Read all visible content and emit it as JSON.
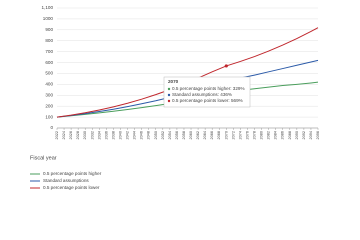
{
  "chart_data": {
    "type": "line",
    "x_label": "Fiscal year",
    "x": [
      2022,
      2026,
      2030,
      2034,
      2038,
      2042,
      2046,
      2050,
      2054,
      2058,
      2062,
      2066,
      2070,
      2074,
      2078,
      2082,
      2086,
      2090,
      2094,
      2096
    ],
    "series": [
      {
        "name": "0.5 percentage points higher",
        "color": "#4a9e5c",
        "values": [
          100,
          112,
          125,
          139,
          154,
          170,
          187,
          205,
          225,
          248,
          273,
          300,
          329,
          345,
          360,
          375,
          389,
          400,
          413,
          420
        ]
      },
      {
        "name": "Standard assumptions",
        "color": "#2b5aa8",
        "values": [
          100,
          115,
          132,
          151,
          172,
          196,
          222,
          250,
          281,
          315,
          352,
          392,
          436,
          458,
          485,
          515,
          545,
          575,
          605,
          620
        ]
      },
      {
        "name": "0.5 percentage points lower",
        "color": "#c0272d",
        "values": [
          100,
          118,
          140,
          165,
          194,
          227,
          264,
          306,
          352,
          403,
          458,
          515,
          569,
          610,
          655,
          705,
          760,
          820,
          885,
          920
        ]
      }
    ],
    "annotation": {
      "index": 12,
      "title": "2070",
      "lines": [
        "0.5 percentage points higher: 329%",
        "Standard assumptions: 436%",
        "0.5 percentage points lower: 569%"
      ]
    },
    "xlim": [
      2022,
      2096
    ],
    "xticks": [
      2022,
      2024,
      2026,
      2028,
      2030,
      2032,
      2034,
      2036,
      2038,
      2040,
      2042,
      2044,
      2046,
      2048,
      2050,
      2052,
      2054,
      2056,
      2058,
      2060,
      2062,
      2064,
      2066,
      2068,
      2070,
      2072,
      2074,
      2076,
      2078,
      2080,
      2082,
      2084,
      2086,
      2088,
      2090,
      2092,
      2094,
      2096
    ],
    "ylim": [
      0,
      1100
    ],
    "yticks": [
      0,
      100,
      200,
      300,
      400,
      500,
      600,
      700,
      800,
      900,
      1000,
      {
        "value": 1100,
        "label": "1,100"
      }
    ],
    "grid": true
  }
}
